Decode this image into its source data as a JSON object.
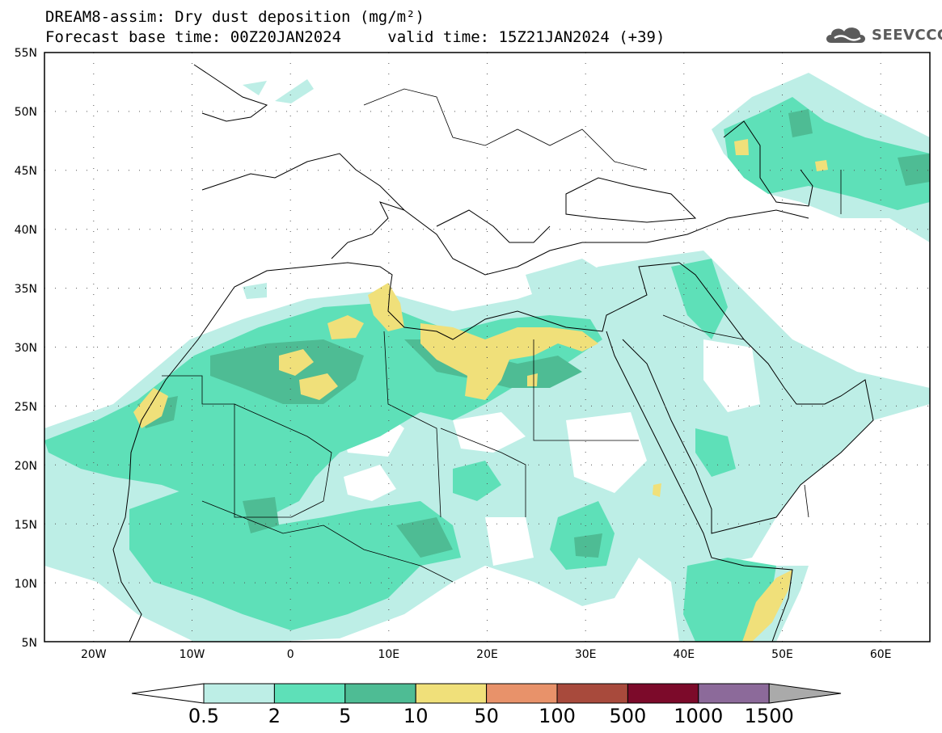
{
  "header": {
    "title_line1": "DREAM8-assim: Dry dust deposition (mg/m²)",
    "title_line2_left": "Forecast base time: 00Z20JAN2024",
    "title_line2_right": "valid time: 15Z21JAN2024 (+39)",
    "logo_text": "SEEVCCC",
    "logo_icon": "cloud-logo-icon"
  },
  "map": {
    "projection": "lat-lon",
    "lon_range": [
      -25,
      65
    ],
    "lat_range": [
      5,
      55
    ],
    "lat_labels": [
      "55N",
      "50N",
      "45N",
      "40N",
      "35N",
      "30N",
      "25N",
      "20N",
      "15N",
      "10N",
      "5N"
    ],
    "lon_labels": [
      "20W",
      "10W",
      "0",
      "10E",
      "20E",
      "30E",
      "40E",
      "50E",
      "60E"
    ],
    "grid": "dotted"
  },
  "colorbar": {
    "labels": [
      "0.5",
      "2",
      "5",
      "10",
      "50",
      "100",
      "500",
      "1000",
      "1500"
    ],
    "colors": [
      "#ffffff",
      "#bdeee6",
      "#5ee0b8",
      "#4ebc94",
      "#f0e07a",
      "#e8926a",
      "#a84a3c",
      "#7c0a2a",
      "#8c6a9a",
      "#aaaaaa"
    ]
  },
  "palette": {
    "ocean": "#ffffff",
    "c1": "#bdeee6",
    "c2": "#5ee0b8",
    "c3": "#4ebc94",
    "c4": "#f0e07a",
    "coast": "#000000"
  }
}
